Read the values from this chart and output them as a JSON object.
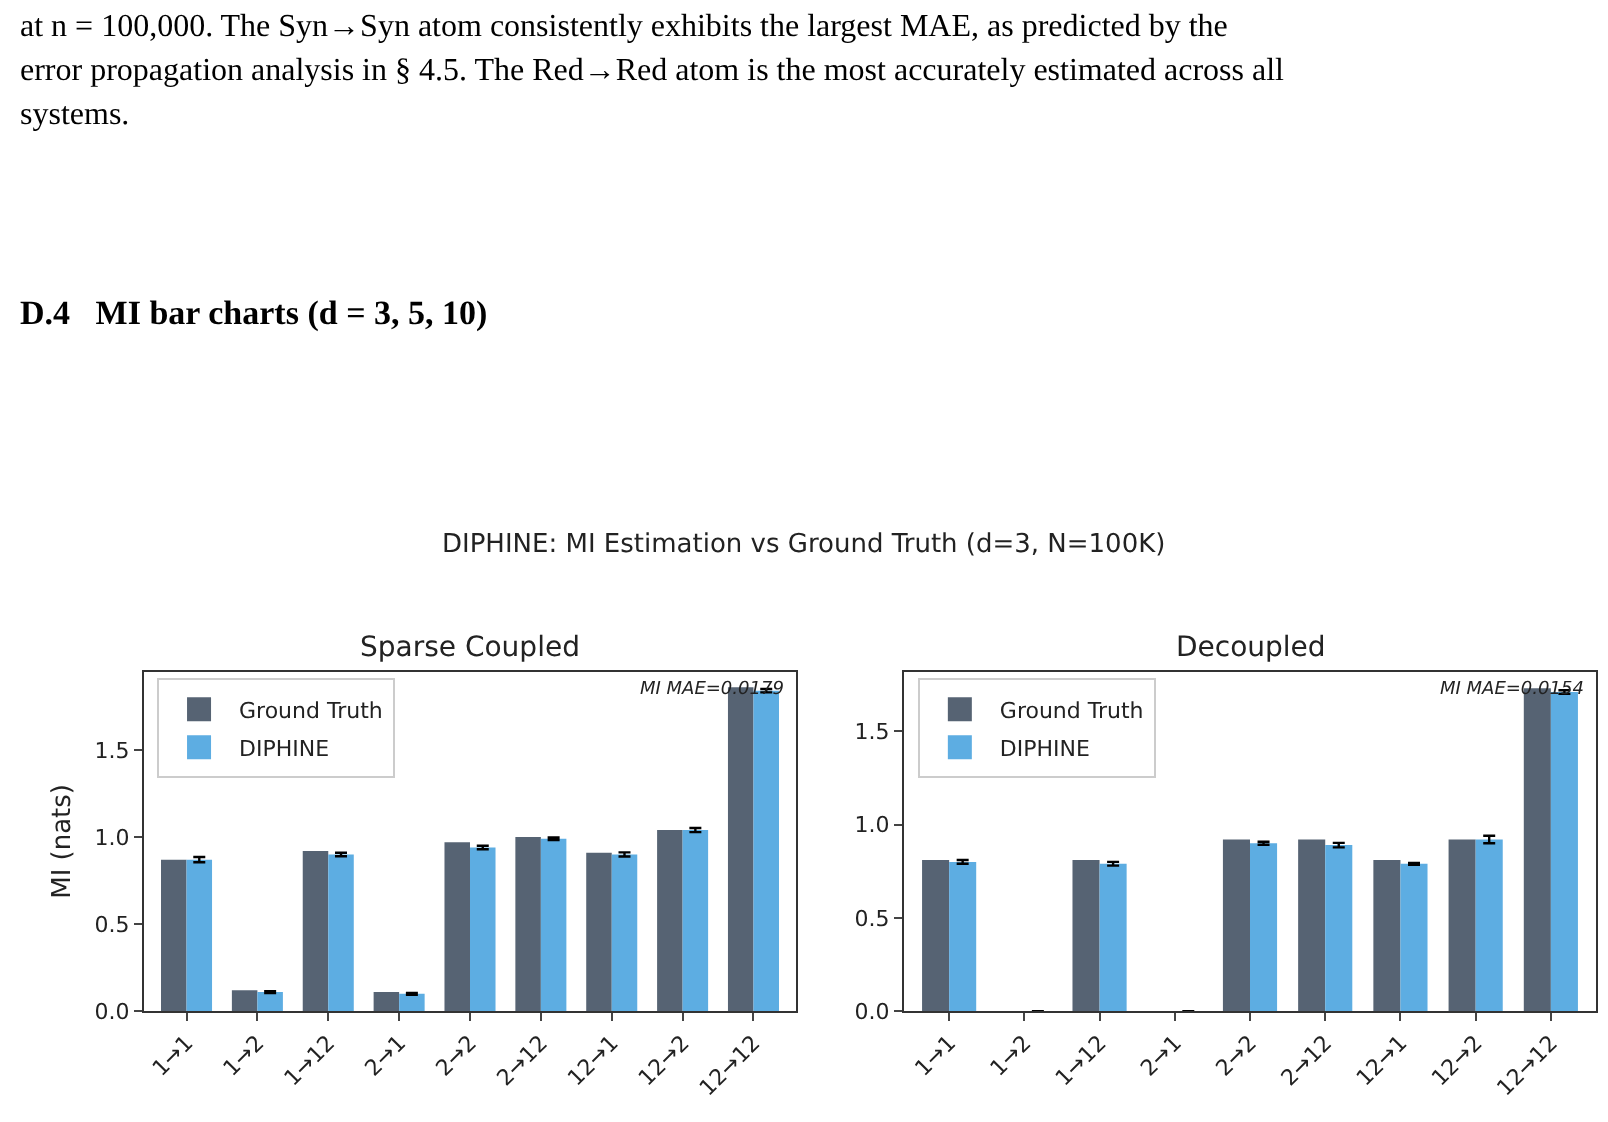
{
  "chart_data": [
    {
      "type": "bar",
      "title": "Sparse Coupled",
      "ylabel": "MI (nats)",
      "annotations": [
        "at n = 100,000. The Syn→Syn atom consistently exhibits the largest MAE, as predicted by the",
        "error propagation analysis in § 4.5. The Red→Red atom is the most accurately estimated across all",
        "systems.",
        "D.4   MI bar charts (d = 3, 5, 10)",
        "DIPHINE: MI Estimation vs Ground Truth (d=3, N=100K)",
        "MI MAE=0.0179"
      ],
      "categories": [
        "1→1",
        "1→2",
        "1→12",
        "2→1",
        "2→2",
        "2→12",
        "12→1",
        "12→2",
        "12→12"
      ],
      "series": [
        {
          "name": "Ground Truth",
          "color": "#566373",
          "values": [
            0.87,
            0.12,
            0.92,
            0.11,
            0.97,
            1.0,
            0.91,
            1.04,
            1.86
          ]
        },
        {
          "name": "DIPHINE",
          "color": "#5dade2",
          "values": [
            0.87,
            0.11,
            0.9,
            0.1,
            0.94,
            0.99,
            0.9,
            1.04,
            1.84
          ],
          "errors": [
            0.015,
            0.005,
            0.01,
            0.005,
            0.01,
            0.007,
            0.012,
            0.012,
            0.01
          ]
        }
      ],
      "ylim": [
        0,
        1.95
      ],
      "yticks": [
        {
          "value": 0,
          "label": "0.0"
        },
        {
          "value": 0.5,
          "label": "0.5"
        },
        {
          "value": 1.0,
          "label": "1.0"
        },
        {
          "value": 1.5,
          "label": "1.5"
        }
      ],
      "legend": "top left"
    },
    {
      "type": "bar",
      "title": "Decoupled",
      "annotations": [
        "MI MAE=0.0154"
      ],
      "categories": [
        "1→1",
        "1→2",
        "1→12",
        "2→1",
        "2→2",
        "2→12",
        "12→1",
        "12→2",
        "12→12"
      ],
      "series": [
        {
          "name": "Ground Truth",
          "color": "#566373",
          "values": [
            0.81,
            0.0,
            0.81,
            0.0,
            0.92,
            0.92,
            0.81,
            0.92,
            1.73
          ]
        },
        {
          "name": "DIPHINE",
          "color": "#5dade2",
          "values": [
            0.8,
            0.0,
            0.79,
            0.0,
            0.9,
            0.89,
            0.79,
            0.92,
            1.71
          ],
          "errors": [
            0.01,
            null,
            0.01,
            null,
            0.008,
            0.012,
            0.005,
            0.02,
            0.01
          ]
        }
      ],
      "ylim": [
        0,
        1.82
      ],
      "yticks": [
        {
          "value": 0,
          "label": "0.0"
        },
        {
          "value": 0.5,
          "label": "0.5"
        },
        {
          "value": 1.0,
          "label": "1.0"
        },
        {
          "value": 1.5,
          "label": "1.5"
        }
      ],
      "legend": "top left"
    }
  ]
}
